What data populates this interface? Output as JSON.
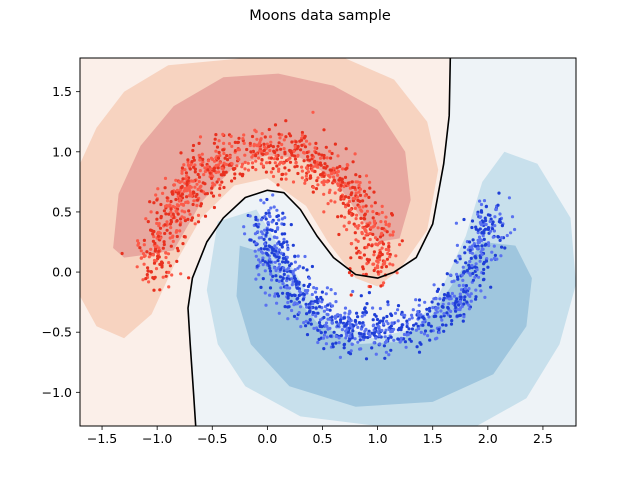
{
  "chart_data": {
    "type": "scatter",
    "title": "Moons data sample",
    "xlabel": "",
    "ylabel": "",
    "xlim": [
      -1.7,
      2.8
    ],
    "ylim": [
      -1.28,
      1.78
    ],
    "xticks": [
      "−1.5",
      "−1.0",
      "−0.5",
      "0.0",
      "0.5",
      "1.0",
      "1.5",
      "2.0",
      "2.5"
    ],
    "xtick_values": [
      -1.5,
      -1.0,
      -0.5,
      0.0,
      0.5,
      1.0,
      1.5,
      2.0,
      2.5
    ],
    "yticks": [
      "−1.0",
      "−0.5",
      "0.0",
      "0.5",
      "1.0",
      "1.5"
    ],
    "ytick_values": [
      -1.0,
      -0.5,
      0.0,
      0.5,
      1.0,
      1.5
    ],
    "grid": false,
    "legend": "none",
    "series": [
      {
        "class": "upper-moon",
        "color": "#e8311f",
        "light_color": "#fb5b4a",
        "arc": {
          "center_x": 0.0,
          "center_y": 0.0,
          "radius": 1.0,
          "angle_from_deg": 0,
          "angle_to_deg": 180
        },
        "noise_sd": 0.1,
        "approx_count": 1000
      },
      {
        "class": "lower-moon",
        "color": "#1f3fd6",
        "light_color": "#5a72f0",
        "arc": {
          "center_x": 1.0,
          "center_y": 0.5,
          "radius": 1.0,
          "angle_from_deg": 180,
          "angle_to_deg": 360
        },
        "noise_sd": 0.1,
        "approx_count": 1000
      }
    ],
    "decision_boundary": [
      [
        -0.65,
        -1.28
      ],
      [
        -0.67,
        -1.0
      ],
      [
        -0.7,
        -0.6
      ],
      [
        -0.72,
        -0.3
      ],
      [
        -0.68,
        -0.05
      ],
      [
        -0.55,
        0.25
      ],
      [
        -0.4,
        0.45
      ],
      [
        -0.2,
        0.62
      ],
      [
        0.0,
        0.68
      ],
      [
        0.15,
        0.66
      ],
      [
        0.3,
        0.52
      ],
      [
        0.45,
        0.3
      ],
      [
        0.6,
        0.12
      ],
      [
        0.8,
        -0.02
      ],
      [
        1.0,
        -0.05
      ],
      [
        1.15,
        0.0
      ],
      [
        1.35,
        0.12
      ],
      [
        1.5,
        0.4
      ],
      [
        1.6,
        0.9
      ],
      [
        1.65,
        1.3
      ],
      [
        1.66,
        1.78
      ]
    ],
    "probability_regions": {
      "red_shades": [
        "#fbefe9",
        "#f7d3c0",
        "#e8a8a0"
      ],
      "blue_shades": [
        "#eef3f7",
        "#c8e0ec",
        "#9fc6de"
      ]
    }
  }
}
